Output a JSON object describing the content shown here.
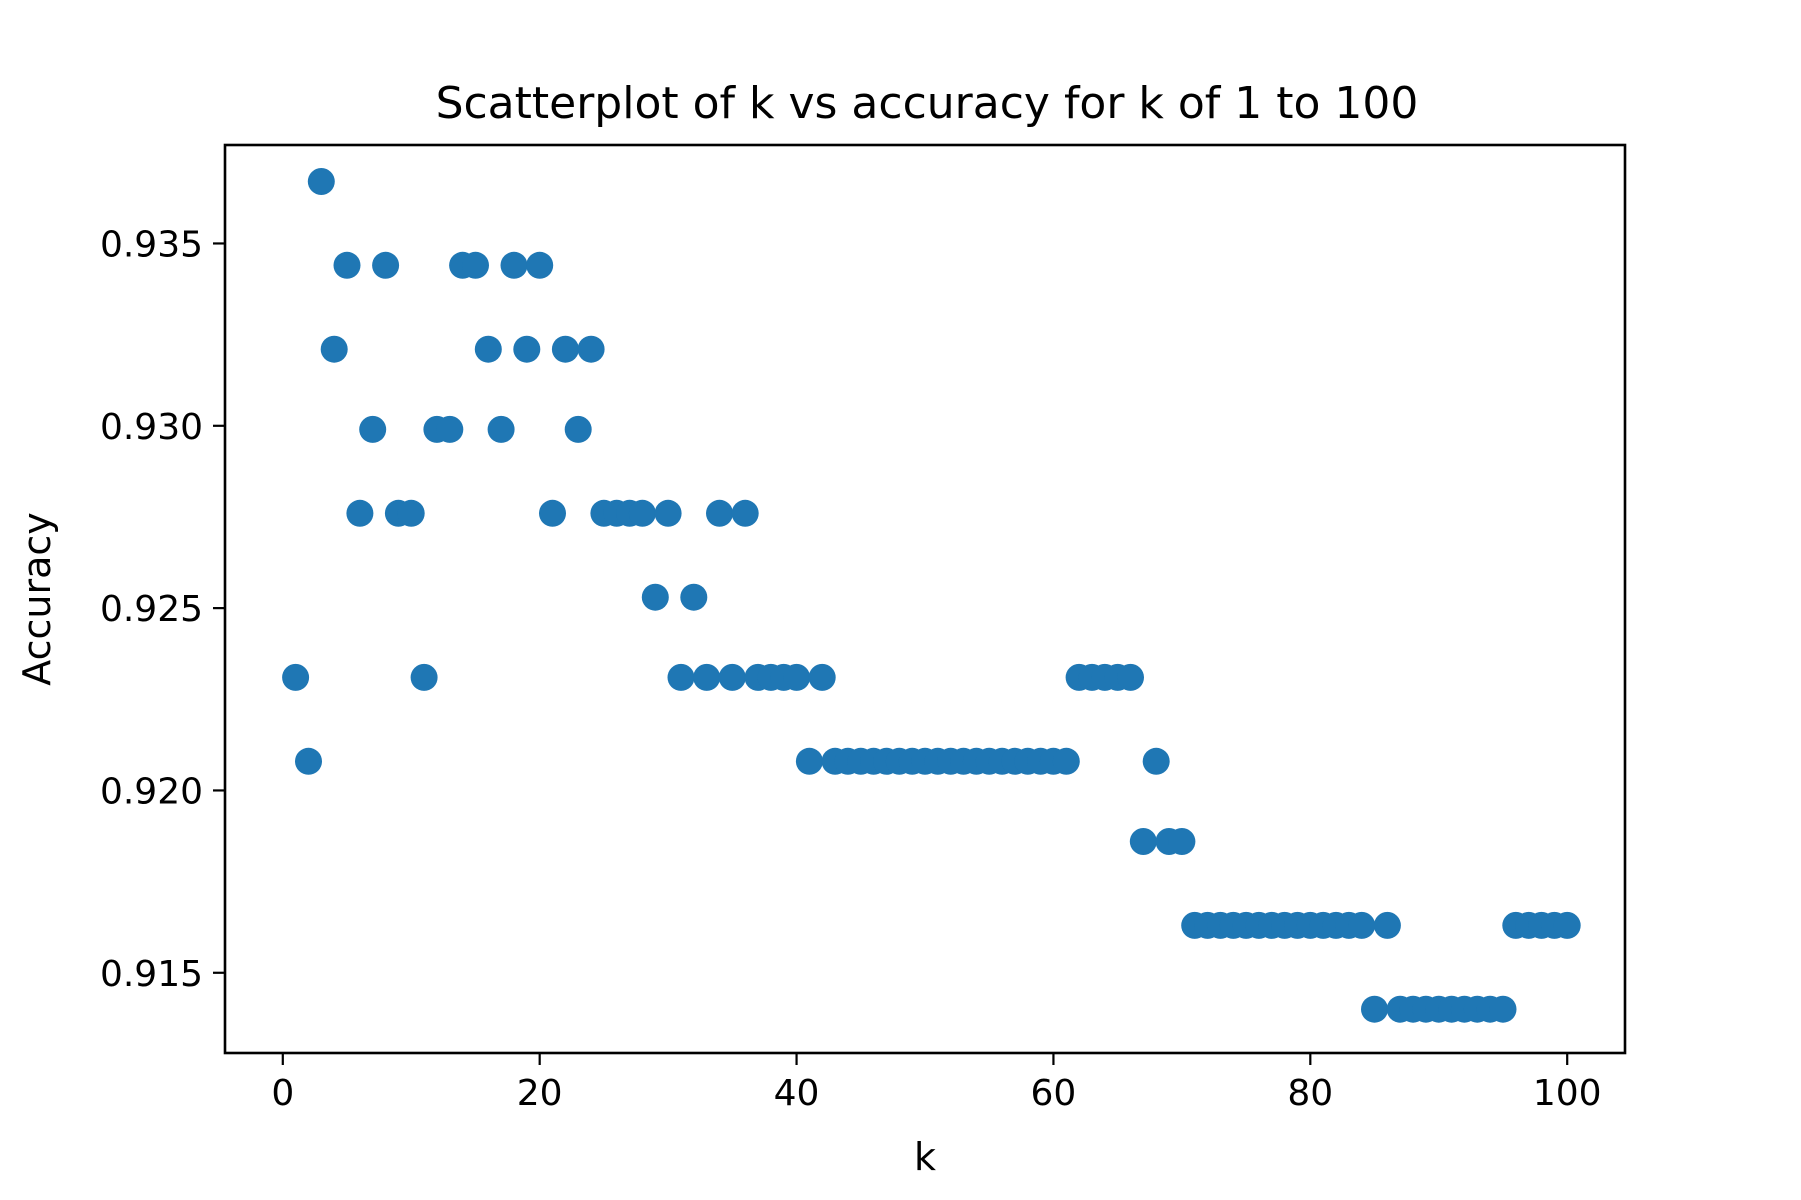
{
  "chart_data": {
    "type": "scatter",
    "title": "Scatterplot of k vs accuracy for k of 1 to 100",
    "xlabel": "k",
    "ylabel": "Accuracy",
    "xlim": [
      -4.5,
      104.5
    ],
    "ylim": [
      0.9128,
      0.9377
    ],
    "x_ticks": [
      0,
      20,
      40,
      60,
      80,
      100
    ],
    "x_tick_labels": [
      "0",
      "20",
      "40",
      "60",
      "80",
      "100"
    ],
    "y_ticks": [
      0.915,
      0.92,
      0.925,
      0.93,
      0.935
    ],
    "y_tick_labels": [
      "0.915",
      "0.920",
      "0.925",
      "0.930",
      "0.935"
    ],
    "grid": false,
    "point_color": "#1f77b4",
    "series": [
      {
        "x": [
          1,
          2,
          3,
          4,
          5,
          6,
          7,
          8,
          9,
          10,
          11,
          12,
          13,
          14,
          15,
          16,
          17,
          18,
          19,
          20,
          21,
          22,
          23,
          24,
          25,
          26,
          27,
          28,
          29,
          30,
          31,
          32,
          33,
          34,
          35,
          36,
          37,
          38,
          39,
          40,
          41,
          42,
          43,
          44,
          45,
          46,
          47,
          48,
          49,
          50,
          51,
          52,
          53,
          54,
          55,
          56,
          57,
          58,
          59,
          60,
          61,
          62,
          63,
          64,
          65,
          66,
          67,
          68,
          69,
          70,
          71,
          72,
          73,
          74,
          75,
          76,
          77,
          78,
          79,
          80,
          81,
          82,
          83,
          84,
          85,
          86,
          87,
          88,
          89,
          90,
          91,
          92,
          93,
          94,
          95,
          96,
          97,
          98,
          99,
          100
        ],
        "y": [
          0.9231,
          0.9208,
          0.9367,
          0.9321,
          0.9344,
          0.9276,
          0.9299,
          0.9344,
          0.9276,
          0.9276,
          0.9231,
          0.9299,
          0.9299,
          0.9344,
          0.9344,
          0.9321,
          0.9299,
          0.9344,
          0.9321,
          0.9344,
          0.9276,
          0.9321,
          0.9299,
          0.9321,
          0.9276,
          0.9276,
          0.9276,
          0.9276,
          0.9253,
          0.9276,
          0.9231,
          0.9253,
          0.9231,
          0.9276,
          0.9231,
          0.9276,
          0.9231,
          0.9231,
          0.9231,
          0.9231,
          0.9208,
          0.9231,
          0.9208,
          0.9208,
          0.9208,
          0.9208,
          0.9208,
          0.9208,
          0.9208,
          0.9208,
          0.9208,
          0.9208,
          0.9208,
          0.9208,
          0.9208,
          0.9208,
          0.9208,
          0.9208,
          0.9208,
          0.9208,
          0.9208,
          0.9231,
          0.9231,
          0.9231,
          0.9231,
          0.9231,
          0.9186,
          0.9208,
          0.9186,
          0.9186,
          0.9163,
          0.9163,
          0.9163,
          0.9163,
          0.9163,
          0.9163,
          0.9163,
          0.9163,
          0.9163,
          0.9163,
          0.9163,
          0.9163,
          0.9163,
          0.9163,
          0.914,
          0.9163,
          0.914,
          0.914,
          0.914,
          0.914,
          0.914,
          0.914,
          0.914,
          0.914,
          0.914,
          0.9163,
          0.9163,
          0.9163,
          0.9163,
          0.9163
        ]
      }
    ]
  }
}
